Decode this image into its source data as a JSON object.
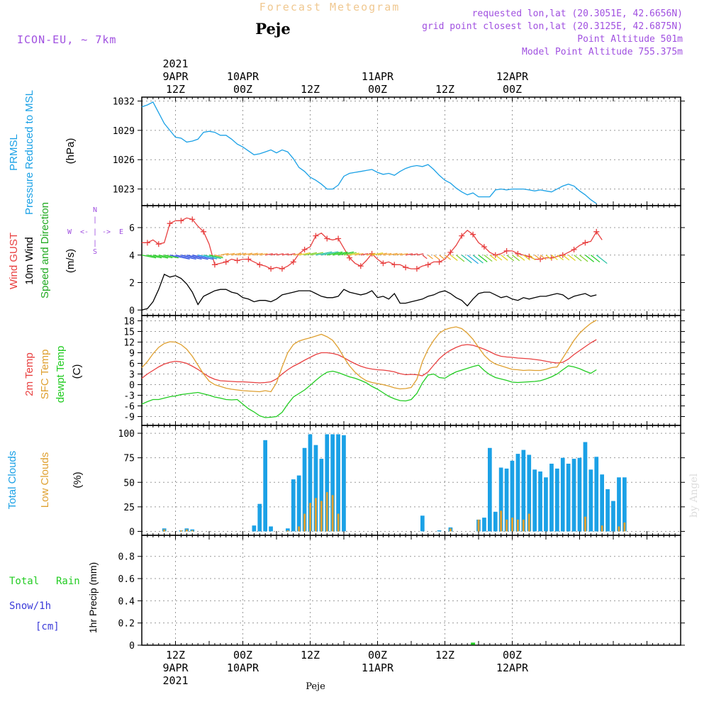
{
  "header": {
    "title": "Forecast Meteogram",
    "location": "Peje",
    "model": "ICON-EU, ~ 7km",
    "requested": "requested lon,lat (20.3051E, 42.6656N)",
    "grid_point": "grid point closest lon,lat (20.3125E, 42.6875N)",
    "point_altitude": "Point Altitude 501m",
    "model_altitude": "Model Point Altitude 755.375m"
  },
  "footer": {
    "location": "Peje",
    "credit": "by Angel"
  },
  "colors": {
    "pressure": "#1ba1e6",
    "gust": "#e84040",
    "wind": "#000000",
    "temp2m": "#e84040",
    "sfc": "#dfa030",
    "dewpt": "#22cc22",
    "total_clouds": "#1ba1e6",
    "low_clouds": "#dfa030",
    "rain": "#22cc22",
    "snow": "#3b3bd9",
    "compass": "#a050e0",
    "header_accent": "#a050e0",
    "title_color": "#f0c890"
  },
  "time_axis": {
    "start_hour": 6,
    "end_hour": 102,
    "top_labels": [
      {
        "hour": 12,
        "lines": [
          "2021",
          "9APR",
          "12Z"
        ]
      },
      {
        "hour": 24,
        "lines": [
          "10APR",
          "00Z"
        ]
      },
      {
        "hour": 36,
        "lines": [
          "12Z"
        ]
      },
      {
        "hour": 48,
        "lines": [
          "11APR",
          "00Z"
        ]
      },
      {
        "hour": 60,
        "lines": [
          "12Z"
        ]
      },
      {
        "hour": 72,
        "lines": [
          "12APR",
          "00Z"
        ]
      }
    ],
    "bottom_labels": [
      {
        "hour": 12,
        "lines": [
          "12Z",
          "9APR",
          "2021"
        ]
      },
      {
        "hour": 24,
        "lines": [
          "00Z",
          "10APR"
        ]
      },
      {
        "hour": 36,
        "lines": [
          "12Z"
        ]
      },
      {
        "hour": 48,
        "lines": [
          "00Z",
          "11APR"
        ]
      },
      {
        "hour": 60,
        "lines": [
          "12Z"
        ]
      },
      {
        "hour": 72,
        "lines": [
          "00Z",
          "12APR"
        ]
      }
    ]
  },
  "panels": {
    "pressure": {
      "labels": [
        "PRMSL",
        "Pressure Reduced to MSL"
      ],
      "unit": "(hPa)",
      "ylim": [
        1021.3,
        1032.4
      ],
      "ticks": [
        1023,
        1026,
        1029,
        1032
      ]
    },
    "wind": {
      "labels": [
        "Wind GUST",
        "10m Wind",
        "Speed and Direction"
      ],
      "unit": "(m/s)",
      "compass": {
        "n": "N",
        "s": "S",
        "w": "W",
        "e": "E",
        "arrow_w": "<-",
        "arrow_e": "->",
        "bar": "|"
      },
      "ylim": [
        -0.4,
        7.6
      ],
      "ticks": [
        0,
        2,
        4,
        6
      ]
    },
    "temp": {
      "labels": [
        "2m Temp",
        "SFC Temp",
        "dewpt Temp"
      ],
      "unit": "(C)",
      "ylim": [
        -11.5,
        19.5
      ],
      "ticks": [
        -9,
        -6,
        -3,
        0,
        3,
        6,
        9,
        12,
        15,
        18
      ]
    },
    "clouds": {
      "labels": [
        "Total Clouds",
        "Low Clouds"
      ],
      "unit": "(%)",
      "ylim": [
        -4,
        108
      ],
      "ticks": [
        0,
        25,
        50,
        75,
        100
      ]
    },
    "precip": {
      "labels": [
        "Total",
        "Rain",
        "Snow/1h",
        "[cm]"
      ],
      "unit": "1hr Precip (mm)",
      "ylim": [
        0,
        0.99
      ],
      "ticks": [
        0,
        0.2,
        0.4,
        0.6,
        0.8
      ],
      "tick_labels": [
        "0",
        "0.2",
        "0.4",
        "0.6",
        "0.8"
      ]
    }
  },
  "chart_data": [
    {
      "type": "line",
      "title": "PRMSL Pressure Reduced to MSL",
      "ylabel": "(hPa)",
      "x_start_hour": 6,
      "x_step_hours": 1,
      "series": [
        {
          "name": "PRMSL",
          "values": [
            1031.4,
            1031.6,
            1031.9,
            1030.8,
            1029.7,
            1029.0,
            1028.3,
            1028.2,
            1027.8,
            1027.9,
            1028.1,
            1028.8,
            1028.9,
            1028.8,
            1028.5,
            1028.5,
            1028.1,
            1027.6,
            1027.3,
            1026.9,
            1026.5,
            1026.6,
            1026.8,
            1027.0,
            1026.7,
            1027.0,
            1026.8,
            1026.1,
            1025.2,
            1024.8,
            1024.2,
            1023.9,
            1023.5,
            1023.0,
            1023.0,
            1023.4,
            1024.3,
            1024.6,
            1024.7,
            1024.8,
            1024.9,
            1025.0,
            1024.7,
            1024.5,
            1024.6,
            1024.4,
            1024.8,
            1025.1,
            1025.3,
            1025.4,
            1025.3,
            1025.5,
            1025.0,
            1024.4,
            1023.9,
            1023.6,
            1023.1,
            1022.7,
            1022.4,
            1022.6,
            1022.2,
            1022.2,
            1022.2,
            1022.9,
            1023.0,
            1022.9,
            1023.0,
            1023.0,
            1023.0,
            1022.9,
            1022.8,
            1022.9,
            1022.8,
            1022.7,
            1023.0,
            1023.3,
            1023.5,
            1023.3,
            1022.8,
            1022.4,
            1021.9,
            1021.5
          ]
        }
      ]
    },
    {
      "type": "line",
      "title": "Wind GUST / 10m Wind Speed and Direction",
      "ylabel": "(m/s)",
      "x_start_hour": 6,
      "x_step_hours": 1,
      "series": [
        {
          "name": "Wind GUST",
          "values": [
            4.9,
            4.9,
            5.1,
            4.8,
            4.9,
            6.3,
            6.5,
            6.5,
            6.7,
            6.6,
            6.1,
            5.7,
            4.8,
            3.3,
            3.4,
            3.5,
            3.7,
            3.6,
            3.7,
            3.7,
            3.5,
            3.3,
            3.2,
            3.0,
            3.1,
            3.0,
            3.2,
            3.5,
            4.1,
            4.4,
            4.6,
            5.4,
            5.6,
            5.2,
            5.1,
            5.2,
            4.5,
            3.8,
            3.4,
            3.2,
            3.6,
            4.1,
            3.7,
            3.4,
            3.5,
            3.3,
            3.3,
            3.1,
            3.0,
            3.0,
            3.2,
            3.3,
            3.5,
            3.5,
            3.7,
            4.2,
            4.7,
            5.4,
            5.8,
            5.5,
            4.9,
            4.6,
            4.2,
            4.0,
            4.1,
            4.3,
            4.3,
            4.1,
            4.0,
            3.9,
            3.7,
            3.7,
            3.8,
            3.8,
            3.9,
            4.0,
            4.2,
            4.4,
            4.7,
            4.9,
            5.0,
            5.7,
            5.1
          ]
        },
        {
          "name": "10m Wind",
          "values": [
            0.0,
            0.1,
            0.6,
            1.5,
            2.6,
            2.4,
            2.5,
            2.3,
            1.9,
            1.3,
            0.4,
            1.0,
            1.2,
            1.4,
            1.5,
            1.5,
            1.3,
            1.2,
            0.9,
            0.8,
            0.6,
            0.7,
            0.7,
            0.6,
            0.8,
            1.1,
            1.2,
            1.3,
            1.4,
            1.4,
            1.4,
            1.2,
            1.0,
            0.9,
            0.9,
            1.0,
            1.5,
            1.3,
            1.2,
            1.1,
            1.2,
            1.4,
            0.9,
            1.0,
            0.8,
            1.2,
            0.5,
            0.5,
            0.6,
            0.7,
            0.8,
            1.0,
            1.1,
            1.3,
            1.4,
            1.2,
            0.9,
            0.7,
            0.3,
            0.8,
            1.2,
            1.3,
            1.3,
            1.1,
            0.9,
            1.0,
            0.8,
            0.7,
            0.9,
            0.8,
            0.9,
            1.0,
            1.0,
            1.1,
            1.2,
            1.1,
            0.8,
            1.0,
            1.1,
            1.2,
            1.0,
            1.1
          ]
        }
      ]
    },
    {
      "type": "line",
      "title": "2m Temp / SFC Temp / dewpt Temp",
      "ylabel": "(C)",
      "x_start_hour": 6,
      "x_step_hours": 1,
      "series": [
        {
          "name": "2m Temp",
          "values": [
            1.8,
            3.0,
            4.0,
            5.0,
            5.8,
            6.3,
            6.6,
            6.4,
            6.0,
            5.2,
            4.3,
            3.2,
            2.2,
            1.5,
            1.1,
            1.0,
            0.9,
            0.8,
            0.8,
            0.7,
            0.6,
            0.5,
            0.6,
            0.8,
            1.6,
            3.0,
            4.2,
            5.2,
            6.0,
            6.9,
            7.7,
            8.5,
            9.0,
            9.0,
            8.8,
            8.4,
            7.6,
            6.7,
            5.9,
            5.2,
            4.7,
            4.4,
            4.2,
            4.1,
            3.9,
            3.6,
            3.1,
            2.8,
            2.9,
            2.8,
            2.5,
            3.6,
            5.5,
            7.3,
            8.7,
            9.7,
            10.5,
            11.1,
            11.3,
            11.1,
            10.6,
            10.0,
            9.3,
            8.5,
            8.0,
            7.8,
            7.7,
            7.5,
            7.4,
            7.3,
            7.1,
            6.9,
            6.6,
            6.3,
            6.1,
            6.3,
            7.2,
            8.5,
            9.6,
            10.7,
            11.8,
            12.7
          ]
        },
        {
          "name": "SFC Temp",
          "values": [
            4.8,
            6.5,
            8.7,
            10.5,
            11.6,
            12.1,
            12.0,
            11.3,
            10.0,
            8.0,
            5.5,
            3.0,
            1.0,
            0.0,
            -0.5,
            -1.0,
            -1.3,
            -1.5,
            -1.7,
            -1.8,
            -1.9,
            -2.0,
            -1.7,
            -2.0,
            0.5,
            5.0,
            9.0,
            11.3,
            12.3,
            12.8,
            13.2,
            13.7,
            14.2,
            13.5,
            12.5,
            10.4,
            7.7,
            5.3,
            3.5,
            2.1,
            1.1,
            0.6,
            0.3,
            0.0,
            -0.4,
            -0.9,
            -1.2,
            -1.1,
            -0.8,
            1.5,
            6.5,
            10.0,
            12.5,
            14.5,
            15.5,
            16.0,
            16.3,
            15.8,
            14.5,
            12.8,
            10.5,
            8.3,
            6.8,
            5.8,
            5.3,
            4.8,
            4.3,
            4.2,
            4.0,
            4.1,
            4.0,
            4.0,
            4.3,
            4.8,
            5.0,
            7.5,
            10.0,
            12.5,
            14.5,
            16.0,
            17.3,
            18.2
          ]
        },
        {
          "name": "dewpt Temp",
          "values": [
            -5.5,
            -4.8,
            -4.2,
            -4.2,
            -3.8,
            -3.4,
            -3.2,
            -2.8,
            -2.6,
            -2.4,
            -2.2,
            -2.6,
            -3.0,
            -3.5,
            -3.8,
            -4.2,
            -4.3,
            -4.2,
            -5.5,
            -6.8,
            -7.7,
            -8.8,
            -9.3,
            -9.2,
            -9.0,
            -7.8,
            -5.5,
            -3.5,
            -2.5,
            -1.5,
            -0.2,
            1.2,
            2.5,
            3.5,
            3.8,
            3.4,
            2.8,
            2.2,
            1.8,
            1.2,
            0.5,
            -0.5,
            -1.3,
            -2.3,
            -3.3,
            -4.0,
            -4.5,
            -4.6,
            -4.2,
            -2.5,
            0.5,
            2.7,
            3.0,
            2.0,
            1.8,
            2.8,
            3.6,
            4.1,
            4.6,
            5.1,
            5.5,
            4.0,
            2.8,
            2.0,
            1.6,
            1.2,
            0.7,
            0.6,
            0.7,
            0.8,
            0.9,
            1.1,
            1.6,
            2.2,
            3.0,
            4.2,
            5.3,
            5.0,
            4.5,
            3.8,
            3.2,
            4.2
          ]
        }
      ]
    },
    {
      "type": "bar",
      "title": "Total Clouds / Low Clouds",
      "ylabel": "(%)",
      "x_start_hour": 6,
      "x_step_hours": 1,
      "series": [
        {
          "name": "Total Clouds",
          "values": [
            0,
            0,
            0,
            0,
            3,
            0,
            0,
            1,
            3,
            2,
            0,
            0,
            0,
            0,
            0,
            0,
            0,
            0,
            0,
            0,
            6,
            28,
            93,
            5,
            0,
            0,
            3,
            53,
            57,
            85,
            99,
            88,
            74,
            99,
            99,
            99,
            98,
            0,
            0,
            0,
            0,
            0,
            0,
            0,
            0,
            0,
            0,
            0,
            0,
            0,
            16,
            0,
            0,
            1,
            0,
            4,
            0,
            0,
            0,
            0,
            12,
            14,
            85,
            20,
            65,
            64,
            72,
            79,
            83,
            78,
            63,
            61,
            55,
            69,
            64,
            75,
            69,
            74,
            75,
            91,
            63,
            76,
            58,
            43,
            31,
            55,
            55
          ]
        },
        {
          "name": "Low Clouds",
          "values": [
            0,
            0,
            0,
            0,
            2,
            0,
            0,
            1,
            2,
            1,
            0,
            0,
            0,
            0,
            0,
            0,
            0,
            0,
            0,
            0,
            0,
            0,
            0,
            0,
            0,
            0,
            1,
            0,
            5,
            18,
            29,
            34,
            31,
            40,
            37,
            18,
            0,
            0,
            0,
            0,
            0,
            0,
            0,
            0,
            0,
            0,
            0,
            0,
            0,
            0,
            0,
            0,
            0,
            0,
            0,
            3,
            0,
            0,
            0,
            0,
            12,
            0,
            0,
            0,
            21,
            12,
            14,
            12,
            12,
            18,
            0,
            0,
            0,
            0,
            0,
            0,
            0,
            0,
            0,
            15,
            0,
            0,
            6,
            0,
            0,
            5,
            9
          ]
        }
      ]
    },
    {
      "type": "bar",
      "title": "Total Rain / Snow 1hr Precip",
      "ylabel": "1hr Precip (mm)",
      "ylim": [
        0,
        0.99
      ],
      "series": [
        {
          "name": "Total Rain",
          "points": [
            {
              "hour": 65,
              "value": 0.01
            }
          ]
        },
        {
          "name": "Snow/1h",
          "points": []
        }
      ]
    }
  ]
}
